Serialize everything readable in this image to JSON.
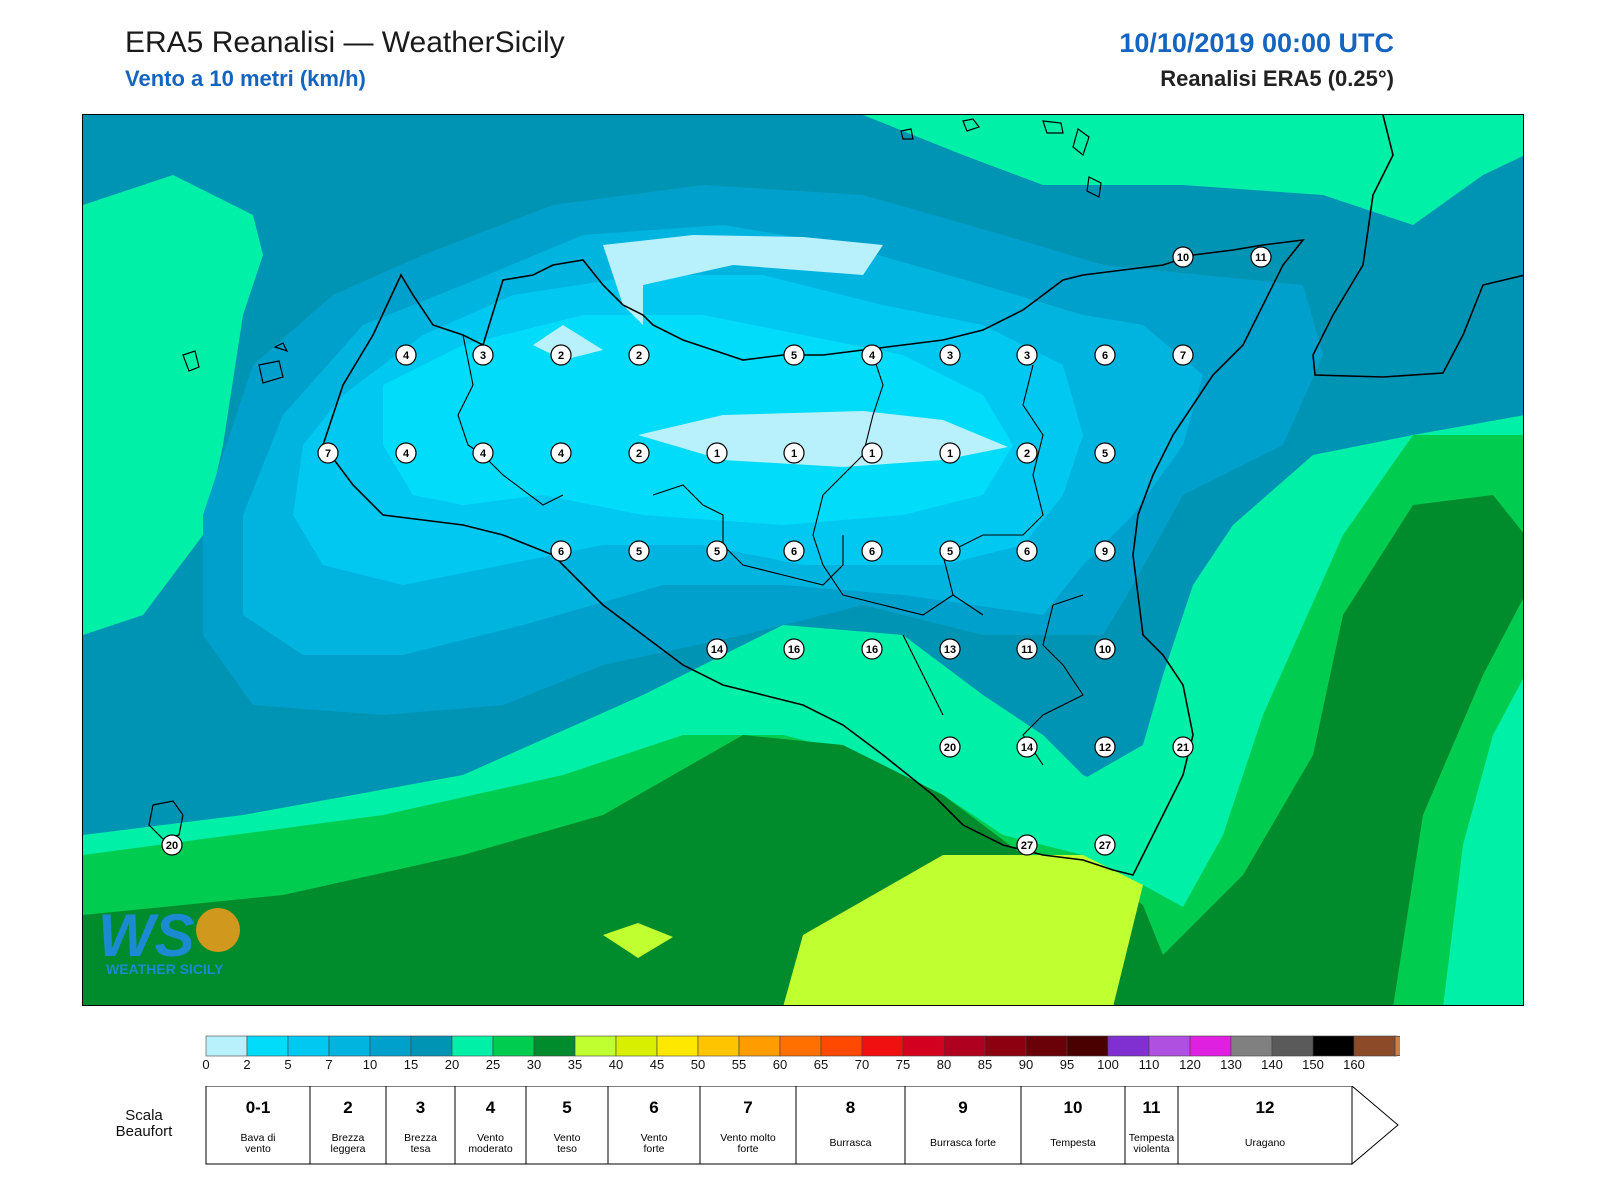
{
  "header": {
    "title": "ERA5 Reanalisi — WeatherSicily",
    "subtitle": "Vento a 10 metri (km/h)",
    "datetime": "10/10/2019 00:00 UTC",
    "model": "Reanalisi ERA5 (0.25°)"
  },
  "logo": {
    "mark": "WS",
    "text": "WEATHER SICILY"
  },
  "stations": [
    {
      "v": "10"
    },
    {
      "v": "11"
    },
    {
      "v": "4"
    },
    {
      "v": "3"
    },
    {
      "v": "2"
    },
    {
      "v": "2"
    },
    {
      "v": "5"
    },
    {
      "v": "4"
    },
    {
      "v": "3"
    },
    {
      "v": "3"
    },
    {
      "v": "6"
    },
    {
      "v": "7"
    },
    {
      "v": "7"
    },
    {
      "v": "4"
    },
    {
      "v": "4"
    },
    {
      "v": "4"
    },
    {
      "v": "2"
    },
    {
      "v": "1"
    },
    {
      "v": "1"
    },
    {
      "v": "1"
    },
    {
      "v": "1"
    },
    {
      "v": "2"
    },
    {
      "v": "5"
    },
    {
      "v": "6"
    },
    {
      "v": "5"
    },
    {
      "v": "5"
    },
    {
      "v": "6"
    },
    {
      "v": "6"
    },
    {
      "v": "5"
    },
    {
      "v": "6"
    },
    {
      "v": "9"
    },
    {
      "v": "14"
    },
    {
      "v": "16"
    },
    {
      "v": "16"
    },
    {
      "v": "13"
    },
    {
      "v": "11"
    },
    {
      "v": "10"
    },
    {
      "v": "20"
    },
    {
      "v": "14"
    },
    {
      "v": "12"
    },
    {
      "v": "21"
    },
    {
      "v": "20"
    },
    {
      "v": "27"
    },
    {
      "v": "27"
    }
  ],
  "colorbar": {
    "ticks": [
      "0",
      "2",
      "5",
      "7",
      "10",
      "15",
      "20",
      "25",
      "30",
      "35",
      "40",
      "45",
      "50",
      "55",
      "60",
      "65",
      "70",
      "75",
      "80",
      "85",
      "90",
      "95",
      "100",
      "110",
      "120",
      "130",
      "140",
      "150",
      "160"
    ],
    "colors": [
      "#b8f0fc",
      "#00dcfa",
      "#00c8f0",
      "#00b4e0",
      "#00a0cc",
      "#0094b4",
      "#00f0a8",
      "#00cc50",
      "#008c2c",
      "#c0ff30",
      "#d8f000",
      "#ffe800",
      "#ffc400",
      "#ff9c00",
      "#ff7000",
      "#ff4800",
      "#f01010",
      "#d40020",
      "#b00020",
      "#8c0010",
      "#6a0008",
      "#4a0000",
      "#8030d0",
      "#b050e0",
      "#e020e0",
      "#808080",
      "#5a5a5a",
      "#000000",
      "#8c4a28",
      "#c88048"
    ]
  },
  "beaufort": {
    "title": "Scala Beaufort",
    "items": [
      {
        "n": "0-1",
        "label": "Bava di vento"
      },
      {
        "n": "2",
        "label": "Brezza leggera"
      },
      {
        "n": "3",
        "label": "Brezza tesa"
      },
      {
        "n": "4",
        "label": "Vento moderato"
      },
      {
        "n": "5",
        "label": "Vento teso"
      },
      {
        "n": "6",
        "label": "Vento forte"
      },
      {
        "n": "7",
        "label": "Vento molto forte"
      },
      {
        "n": "8",
        "label": "Burrasca"
      },
      {
        "n": "9",
        "label": "Burrasca forte"
      },
      {
        "n": "10",
        "label": "Tempesta"
      },
      {
        "n": "11",
        "label": "Tempesta violenta"
      },
      {
        "n": "12",
        "label": "Uragano"
      }
    ]
  }
}
